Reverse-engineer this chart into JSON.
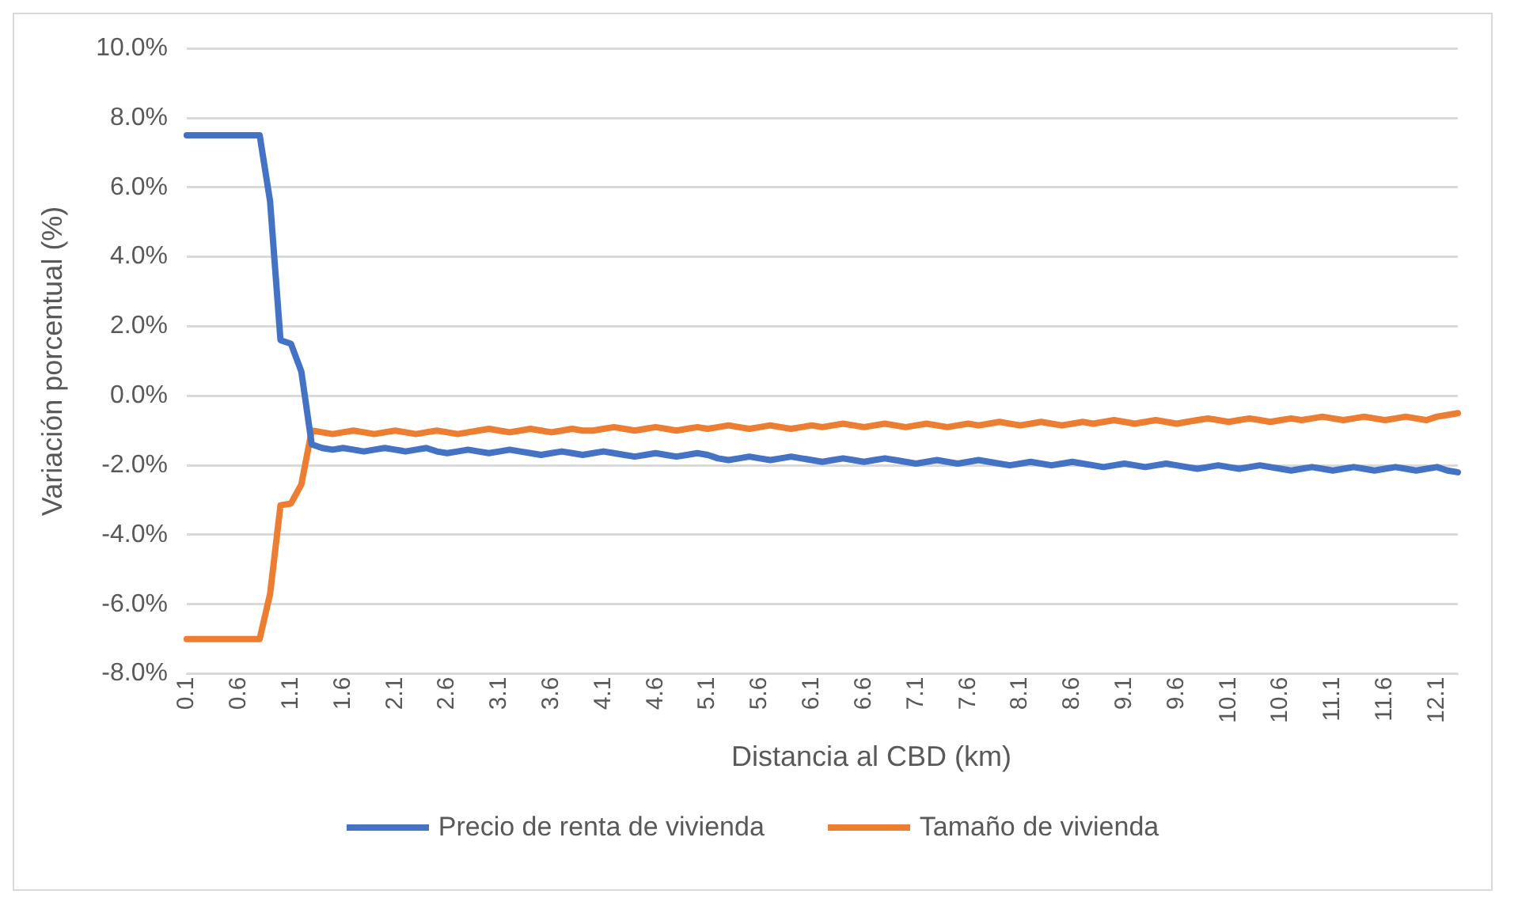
{
  "chart_data": {
    "type": "line",
    "xlabel": "Distancia al CBD (km)",
    "ylabel": "Variación porcentual (%)",
    "categories": [
      "0.1",
      null,
      null,
      null,
      null,
      "0.6",
      null,
      null,
      null,
      null,
      "1.1",
      null,
      null,
      null,
      null,
      "1.6",
      null,
      null,
      null,
      null,
      "2.1",
      null,
      null,
      null,
      null,
      "2.6",
      null,
      null,
      null,
      null,
      "3.1",
      null,
      null,
      null,
      null,
      "3.6",
      null,
      null,
      null,
      null,
      "4.1",
      null,
      null,
      null,
      null,
      "4.6",
      null,
      null,
      null,
      null,
      "5.1",
      null,
      null,
      null,
      null,
      "5.6",
      null,
      null,
      null,
      null,
      "6.1",
      null,
      null,
      null,
      null,
      "6.6",
      null,
      null,
      null,
      null,
      "7.1",
      null,
      null,
      null,
      null,
      "7.6",
      null,
      null,
      null,
      null,
      "8.1",
      null,
      null,
      null,
      null,
      "8.6",
      null,
      null,
      null,
      null,
      "9.1",
      null,
      null,
      null,
      null,
      "9.6",
      null,
      null,
      null,
      null,
      "10.1",
      null,
      null,
      null,
      null,
      "10.6",
      null,
      null,
      null,
      null,
      "11.1",
      null,
      null,
      null,
      null,
      "11.6",
      null,
      null,
      null,
      null,
      "12.1",
      null,
      null
    ],
    "series": [
      {
        "name": "Precio de renta de vivienda",
        "color": "#4472c4",
        "values": [
          7.5,
          7.5,
          7.5,
          7.5,
          7.5,
          7.5,
          7.5,
          7.5,
          5.6,
          1.6,
          1.5,
          0.7,
          -1.4,
          -1.5,
          -1.55,
          -1.5,
          -1.55,
          -1.6,
          -1.55,
          -1.5,
          -1.55,
          -1.6,
          -1.55,
          -1.5,
          -1.6,
          -1.65,
          -1.6,
          -1.55,
          -1.6,
          -1.65,
          -1.6,
          -1.55,
          -1.6,
          -1.65,
          -1.7,
          -1.65,
          -1.6,
          -1.65,
          -1.7,
          -1.65,
          -1.6,
          -1.65,
          -1.7,
          -1.75,
          -1.7,
          -1.65,
          -1.7,
          -1.75,
          -1.7,
          -1.65,
          -1.7,
          -1.8,
          -1.85,
          -1.8,
          -1.75,
          -1.8,
          -1.85,
          -1.8,
          -1.75,
          -1.8,
          -1.85,
          -1.9,
          -1.85,
          -1.8,
          -1.85,
          -1.9,
          -1.85,
          -1.8,
          -1.85,
          -1.9,
          -1.95,
          -1.9,
          -1.85,
          -1.9,
          -1.95,
          -1.9,
          -1.85,
          -1.9,
          -1.95,
          -2.0,
          -1.95,
          -1.9,
          -1.95,
          -2.0,
          -1.95,
          -1.9,
          -1.95,
          -2.0,
          -2.05,
          -2.0,
          -1.95,
          -2.0,
          -2.05,
          -2.0,
          -1.95,
          -2.0,
          -2.05,
          -2.1,
          -2.05,
          -2.0,
          -2.05,
          -2.1,
          -2.05,
          -2.0,
          -2.05,
          -2.1,
          -2.15,
          -2.1,
          -2.05,
          -2.1,
          -2.15,
          -2.1,
          -2.05,
          -2.1,
          -2.15,
          -2.1,
          -2.05,
          -2.1,
          -2.15,
          -2.1,
          -2.05,
          -2.15,
          -2.2
        ]
      },
      {
        "name": "Tamaño de vivienda",
        "color": "#ed7d31",
        "values": [
          -7.0,
          -7.0,
          -7.0,
          -7.0,
          -7.0,
          -7.0,
          -7.0,
          -7.0,
          -5.7,
          -3.15,
          -3.1,
          -2.55,
          -1.0,
          -1.05,
          -1.1,
          -1.05,
          -1.0,
          -1.05,
          -1.1,
          -1.05,
          -1.0,
          -1.05,
          -1.1,
          -1.05,
          -1.0,
          -1.05,
          -1.1,
          -1.05,
          -1.0,
          -0.95,
          -1.0,
          -1.05,
          -1.0,
          -0.95,
          -1.0,
          -1.05,
          -1.0,
          -0.95,
          -1.0,
          -1.0,
          -0.95,
          -0.9,
          -0.95,
          -1.0,
          -0.95,
          -0.9,
          -0.95,
          -1.0,
          -0.95,
          -0.9,
          -0.95,
          -0.9,
          -0.85,
          -0.9,
          -0.95,
          -0.9,
          -0.85,
          -0.9,
          -0.95,
          -0.9,
          -0.85,
          -0.9,
          -0.85,
          -0.8,
          -0.85,
          -0.9,
          -0.85,
          -0.8,
          -0.85,
          -0.9,
          -0.85,
          -0.8,
          -0.85,
          -0.9,
          -0.85,
          -0.8,
          -0.85,
          -0.8,
          -0.75,
          -0.8,
          -0.85,
          -0.8,
          -0.75,
          -0.8,
          -0.85,
          -0.8,
          -0.75,
          -0.8,
          -0.75,
          -0.7,
          -0.75,
          -0.8,
          -0.75,
          -0.7,
          -0.75,
          -0.8,
          -0.75,
          -0.7,
          -0.65,
          -0.7,
          -0.75,
          -0.7,
          -0.65,
          -0.7,
          -0.75,
          -0.7,
          -0.65,
          -0.7,
          -0.65,
          -0.6,
          -0.65,
          -0.7,
          -0.65,
          -0.6,
          -0.65,
          -0.7,
          -0.65,
          -0.6,
          -0.65,
          -0.7,
          -0.6,
          -0.55,
          -0.5
        ]
      }
    ],
    "ylim": [
      -8,
      10
    ],
    "yticks": [
      {
        "value": -8,
        "label": "-8.0%"
      },
      {
        "value": -6,
        "label": "-6.0%"
      },
      {
        "value": -4,
        "label": "-4.0%"
      },
      {
        "value": -2,
        "label": "-2.0%"
      },
      {
        "value": 0,
        "label": "0.0%"
      },
      {
        "value": 2,
        "label": "2.0%"
      },
      {
        "value": 4,
        "label": "4.0%"
      },
      {
        "value": 6,
        "label": "6.0%"
      },
      {
        "value": 8,
        "label": "8.0%"
      },
      {
        "value": 10,
        "label": "10.0%"
      }
    ],
    "grid": "y",
    "legend": "bottom",
    "marker": "none",
    "line_style": "solid"
  }
}
